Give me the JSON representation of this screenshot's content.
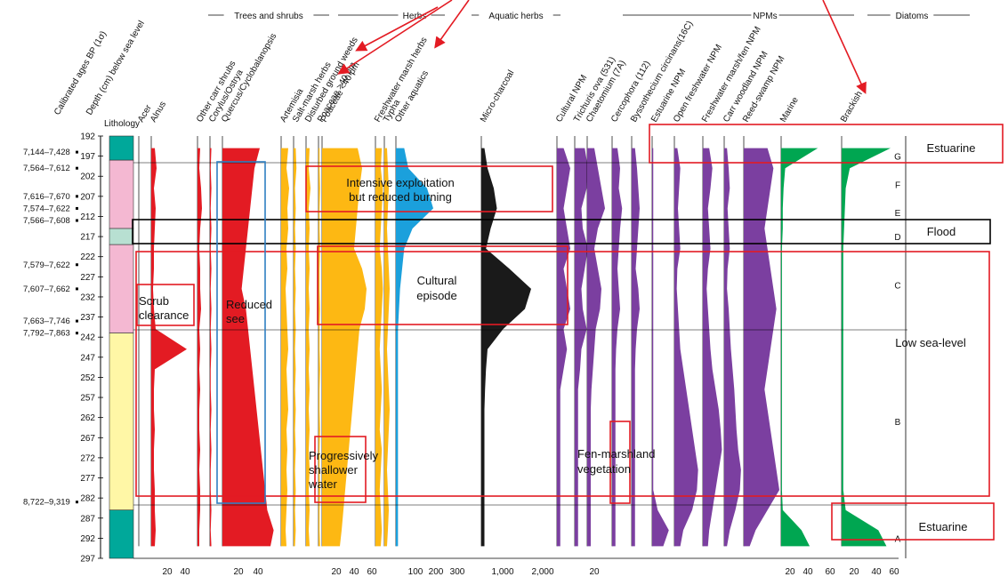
{
  "chart_data": {
    "type": "area",
    "depth_axis": {
      "label": "Depth (cm) below sea level",
      "ticks": [
        192,
        197,
        202,
        207,
        212,
        217,
        222,
        227,
        232,
        237,
        242,
        247,
        252,
        257,
        262,
        267,
        272,
        277,
        282,
        287,
        292,
        297
      ],
      "range": [
        192,
        297
      ]
    },
    "age_axis": {
      "label": "Calibrated ages BP (1σ)",
      "labels": [
        {
          "text": "7,144–7,428",
          "depth": 196
        },
        {
          "text": "7,564–7,612",
          "depth": 200
        },
        {
          "text": "7,616–7,670",
          "depth": 207
        },
        {
          "text": "7,574–7,622",
          "depth": 210
        },
        {
          "text": "7,566–7,608",
          "depth": 213
        },
        {
          "text": "7,579–7,622",
          "depth": 224
        },
        {
          "text": "7,607–7,662",
          "depth": 230
        },
        {
          "text": "7,663–7,746",
          "depth": 238
        },
        {
          "text": "7,792–7,863",
          "depth": 241
        },
        {
          "text": "8,722–9,319",
          "depth": 283
        }
      ]
    },
    "lithology": {
      "label": "Lithology",
      "units": [
        {
          "from": 192,
          "to": 198,
          "color": "#00a89a"
        },
        {
          "from": 198,
          "to": 215,
          "color": "#f4b8d2"
        },
        {
          "from": 215,
          "to": 219,
          "color": "#b8e0d2"
        },
        {
          "from": 219,
          "to": 241,
          "color": "#f4b8d2"
        },
        {
          "from": 241,
          "to": 285,
          "color": "#fff7a6"
        },
        {
          "from": 285,
          "to": 297,
          "color": "#00a89a"
        }
      ]
    },
    "groups": [
      {
        "name": "Trees and shrubs"
      },
      {
        "name": "Herbs"
      },
      {
        "name": "Aquatic herbs"
      },
      {
        "name": "NPMs"
      },
      {
        "name": "Diatoms"
      }
    ],
    "taxa": [
      {
        "name": "Acer",
        "color": "#e31b23",
        "values": [
          0,
          0,
          0,
          0,
          0,
          0,
          0,
          0,
          0,
          0,
          0,
          0,
          0,
          0,
          0,
          0,
          0,
          0,
          0,
          0,
          0
        ]
      },
      {
        "name": "Alnus",
        "color": "#e31b23",
        "values": [
          4,
          6,
          3,
          5,
          4,
          3,
          3,
          2,
          3,
          5,
          40,
          4,
          3,
          3,
          4,
          3,
          3,
          4,
          4,
          5,
          4
        ]
      },
      {
        "name": "Other carr shrubs",
        "color": "#e31b23",
        "values": [
          3,
          2,
          4,
          5,
          3,
          2,
          3,
          3,
          4,
          2,
          3,
          2,
          3,
          2,
          2,
          3,
          2,
          3,
          3,
          2,
          2
        ]
      },
      {
        "name": "Corylus/Ostrya",
        "color": "#e31b23",
        "values": [
          2,
          1,
          2,
          1,
          2,
          1,
          2,
          1,
          2,
          1,
          2,
          1,
          1,
          2,
          1,
          2,
          1,
          1,
          2,
          1,
          2
        ]
      },
      {
        "name": "Quercus/Cyclobalanopsis",
        "color": "#e31b23",
        "values": [
          35,
          30,
          28,
          26,
          24,
          22,
          20,
          18,
          22,
          24,
          26,
          28,
          30,
          32,
          34,
          36,
          38,
          40,
          42,
          48,
          45
        ]
      },
      {
        "name": "Artemisia",
        "color": "#fdb813",
        "values": [
          8,
          6,
          9,
          7,
          8,
          6,
          7,
          5,
          6,
          7,
          8,
          6,
          7,
          8,
          6,
          7,
          6,
          7,
          6,
          5,
          6
        ]
      },
      {
        "name": "Salt-marsh herbs",
        "color": "#fdb813",
        "values": [
          3,
          4,
          2,
          3,
          2,
          3,
          2,
          3,
          2,
          3,
          2,
          3,
          2,
          3,
          2,
          3,
          2,
          3,
          2,
          3,
          2
        ]
      },
      {
        "name": "Disturbed ground weeds",
        "color": "#fdb813",
        "values": [
          4,
          3,
          5,
          3,
          4,
          3,
          4,
          3,
          4,
          3,
          4,
          3,
          4,
          3,
          4,
          3,
          4,
          3,
          4,
          3,
          4
        ]
      },
      {
        "name": "Poaceae >40 μm",
        "color": "#fdb813",
        "values": [
          2,
          2,
          3,
          2,
          2,
          3,
          2,
          2,
          3,
          2,
          2,
          3,
          2,
          2,
          3,
          2,
          2,
          3,
          2,
          2,
          3
        ]
      },
      {
        "name": "Poaceae <40 μm",
        "color": "#fdb813",
        "values": [
          40,
          45,
          42,
          40,
          38,
          36,
          45,
          50,
          48,
          42,
          40,
          38,
          36,
          34,
          32,
          30,
          28,
          26,
          24,
          22,
          20
        ]
      },
      {
        "name": "Freshwater marsh herbs",
        "color": "#fdb813",
        "values": [
          6,
          5,
          7,
          6,
          5,
          4,
          6,
          7,
          6,
          5,
          4,
          5,
          6,
          5,
          4,
          6,
          5,
          4,
          5,
          6,
          5
        ]
      },
      {
        "name": "Typha",
        "color": "#fdb813",
        "values": [
          3,
          4,
          5,
          4,
          3,
          4,
          5,
          6,
          5,
          4,
          3,
          4,
          5,
          6,
          5,
          4,
          3,
          4,
          5,
          4,
          3
        ]
      },
      {
        "name": "Other aquatics",
        "color": "#1ba0dc",
        "values": [
          40,
          60,
          150,
          180,
          80,
          40,
          30,
          20,
          15,
          10,
          10,
          10,
          10,
          10,
          10,
          10,
          10,
          10,
          10,
          10,
          10
        ]
      },
      {
        "name": "Micro-charcoal",
        "color": "#1a1a1a",
        "values": [
          100,
          200,
          400,
          500,
          300,
          150,
          900,
          1600,
          1400,
          700,
          200,
          150,
          120,
          100,
          100,
          100,
          100,
          100,
          100,
          100,
          100
        ]
      },
      {
        "name": "Cultural NPM",
        "color": "#7b3fa0",
        "values": [
          10,
          20,
          15,
          10,
          15,
          20,
          10,
          15,
          20,
          10,
          15,
          10,
          5,
          5,
          5,
          5,
          5,
          5,
          5,
          5,
          5
        ]
      },
      {
        "name": "Trichuris ova (531)",
        "color": "#7b3fa0",
        "values": [
          15,
          20,
          18,
          10,
          12,
          20,
          15,
          10,
          12,
          18,
          10,
          8,
          5,
          5,
          5,
          5,
          5,
          5,
          5,
          5,
          5
        ]
      },
      {
        "name": "Chaetomium (7A)",
        "color": "#7b3fa0",
        "values": [
          10,
          15,
          20,
          25,
          15,
          10,
          15,
          20,
          18,
          12,
          10,
          8,
          6,
          5,
          5,
          5,
          5,
          5,
          5,
          5,
          5
        ]
      },
      {
        "name": "Cercophora (112)",
        "color": "#7b3fa0",
        "values": [
          8,
          12,
          10,
          15,
          12,
          10,
          8,
          10,
          12,
          8,
          6,
          5,
          5,
          5,
          5,
          5,
          5,
          5,
          5,
          5,
          5
        ]
      },
      {
        "name": "Byssothecium circinans(16C)",
        "color": "#7b3fa0",
        "values": [
          5,
          8,
          10,
          12,
          10,
          8,
          6,
          10,
          12,
          8,
          6,
          5,
          5,
          5,
          5,
          5,
          5,
          5,
          5,
          5,
          5
        ]
      },
      {
        "name": "Estuarine NPM",
        "color": "#7b3fa0",
        "values": [
          2,
          2,
          2,
          2,
          2,
          2,
          2,
          2,
          2,
          2,
          2,
          2,
          2,
          2,
          2,
          2,
          2,
          2,
          10,
          30,
          20
        ]
      },
      {
        "name": "Open freshwater NPM",
        "color": "#7b3fa0",
        "values": [
          5,
          10,
          8,
          6,
          8,
          10,
          5,
          4,
          6,
          8,
          10,
          15,
          20,
          25,
          30,
          35,
          40,
          38,
          30,
          15,
          10
        ]
      },
      {
        "name": "Freshwater marsh/fen NPM",
        "color": "#7b3fa0",
        "values": [
          10,
          15,
          12,
          8,
          10,
          12,
          8,
          6,
          8,
          10,
          12,
          15,
          20,
          25,
          28,
          30,
          25,
          20,
          15,
          10,
          8
        ]
      },
      {
        "name": "Carr woodland NPM",
        "color": "#7b3fa0",
        "values": [
          5,
          8,
          10,
          6,
          8,
          10,
          6,
          5,
          8,
          10,
          12,
          15,
          18,
          20,
          22,
          25,
          30,
          28,
          20,
          10,
          5
        ]
      },
      {
        "name": "Reed-swamp NPM",
        "color": "#7b3fa0",
        "values": [
          40,
          50,
          45,
          40,
          35,
          40,
          45,
          50,
          55,
          50,
          45,
          40,
          35,
          40,
          45,
          50,
          55,
          60,
          40,
          20,
          10
        ]
      },
      {
        "name": "Marine",
        "color": "#00a651",
        "values": [
          45,
          5,
          3,
          2,
          2,
          1,
          1,
          1,
          1,
          1,
          1,
          1,
          1,
          1,
          1,
          1,
          1,
          1,
          2,
          25,
          35
        ]
      },
      {
        "name": "Brackish",
        "color": "#00a651",
        "values": [
          60,
          10,
          5,
          4,
          3,
          2,
          2,
          2,
          2,
          2,
          2,
          2,
          2,
          2,
          2,
          2,
          2,
          2,
          5,
          45,
          55
        ]
      }
    ],
    "sample_depths": [
      195,
      200,
      205,
      210,
      215,
      220,
      225,
      230,
      235,
      240,
      245,
      250,
      255,
      260,
      265,
      270,
      275,
      280,
      285,
      290,
      294
    ],
    "x_ticks": {
      "trees_a": [
        "20",
        "40"
      ],
      "trees_b": [
        "20",
        "40"
      ],
      "herbs_a": [
        "20",
        "40",
        "60"
      ],
      "aquatic": [
        "100",
        "200",
        "300"
      ],
      "charcoal": [
        "1,000",
        "2,000"
      ],
      "npm_a": [
        "20"
      ],
      "npm_b": [
        "20",
        "40",
        "60"
      ],
      "marine": [
        "20",
        "40",
        "60"
      ],
      "brackish": [
        "20",
        "40",
        "60"
      ]
    },
    "zones": [
      {
        "label": "G",
        "depth": 197
      },
      {
        "label": "F",
        "depth": 204
      },
      {
        "label": "E",
        "depth": 211
      },
      {
        "label": "D",
        "depth": 217
      },
      {
        "label": "C",
        "depth": 229
      },
      {
        "label": "B",
        "depth": 263
      },
      {
        "label": "A",
        "depth": 292
      }
    ]
  },
  "annotations": {
    "estuarine_top": "Estuarine",
    "flood": "Flood",
    "intensive": "Intensive exploitation but reduced burning",
    "intensive_line1": "Intensive exploitation",
    "intensive_line2": "but reduced burning",
    "low_sea": "Low sea-level",
    "scrub": "Scrub clearance",
    "scrub_line1": "Scrub",
    "scrub_line2": "clearance",
    "reduced": "Reduced see",
    "reduced_line1": "Reduced",
    "reduced_line2": "see",
    "cultural": "Cultural episode",
    "cultural_line1": "Cultural",
    "cultural_line2": "episode",
    "shallower": "Progressively shallower water",
    "shallower_line1": "Progressively",
    "shallower_line2": "shallower",
    "shallower_line3": "water",
    "fen": "Fen-marshland vegetation",
    "fen_line1": "Fen-marshland",
    "fen_line2": "vegetation",
    "estuarine_bottom": "Estuarine"
  },
  "colors": {
    "red_box": "#e31b23",
    "black_box": "#000000",
    "blue_box": "#2f7fc1"
  }
}
